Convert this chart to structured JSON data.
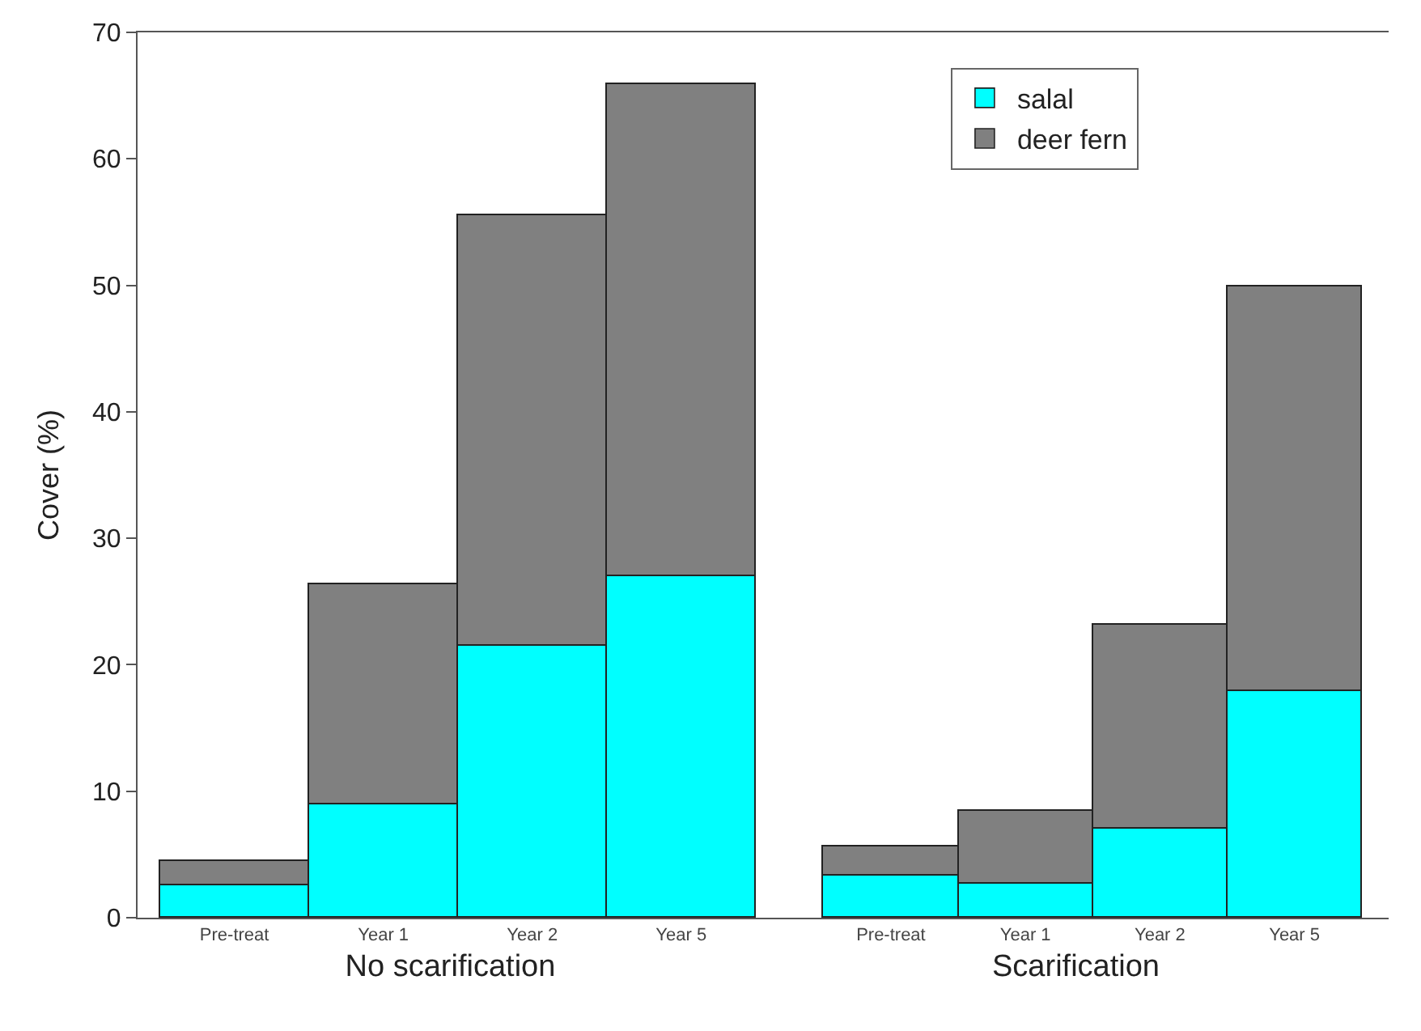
{
  "chart_data": [
    {
      "type": "bar",
      "stacked": true,
      "xlabel": "No scarification",
      "ylabel": "Cover (%)",
      "categories": [
        "Pre-treat",
        "Year 1",
        "Year 2",
        "Year 5"
      ],
      "ylim": [
        0,
        70
      ],
      "yticks": [
        0,
        10,
        20,
        30,
        40,
        50,
        60,
        70
      ],
      "legend": false,
      "series": [
        {
          "color": "#00ffff",
          "values": [
            2.5,
            9.0,
            21.5,
            27.0
          ]
        },
        {
          "color": "#808080",
          "values": [
            2.0,
            17.4,
            34.0,
            38.9
          ]
        }
      ]
    },
    {
      "type": "bar",
      "stacked": true,
      "xlabel": "Scarification",
      "categories": [
        "Pre-treat",
        "Year 1",
        "Year 2",
        "Year 5"
      ],
      "ylim": [
        0,
        70
      ],
      "tick_labels": "x",
      "legend": "top right",
      "series": [
        {
          "name": "salal",
          "color": "#00ffff",
          "values": [
            3.3,
            2.7,
            7.0,
            17.9
          ]
        },
        {
          "name": "deer fern",
          "color": "#808080",
          "values": [
            2.3,
            5.7,
            16.2,
            32.0
          ]
        }
      ]
    }
  ]
}
